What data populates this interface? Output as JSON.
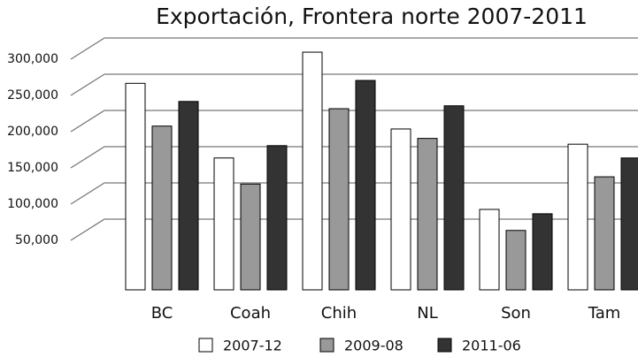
{
  "chart_data": {
    "type": "bar",
    "title": "Exportación, Frontera norte 2007-2011",
    "categories": [
      "BC",
      "Coah",
      "Chih",
      "NL",
      "Son",
      "Tam"
    ],
    "series": [
      {
        "name": "2007-12",
        "color": "#ffffff",
        "values": [
          285000,
          182000,
          328000,
          222000,
          111000,
          201000
        ]
      },
      {
        "name": "2009-08",
        "color": "#999999",
        "values": [
          226000,
          146000,
          250000,
          209000,
          82000,
          156000
        ]
      },
      {
        "name": "2011-06",
        "color": "#333333",
        "values": [
          260000,
          199000,
          289000,
          254000,
          105000,
          182000
        ]
      }
    ],
    "ylim": [
      0,
      350000
    ],
    "yticks": [
      {
        "value": 50000,
        "label": "50,000"
      },
      {
        "value": 100000,
        "label": "100,000"
      },
      {
        "value": 150000,
        "label": "150,000"
      },
      {
        "value": 200000,
        "label": "200,000"
      },
      {
        "value": 250000,
        "label": "250,000"
      },
      {
        "value": 300000,
        "label": "300,000"
      }
    ],
    "grid": true
  }
}
